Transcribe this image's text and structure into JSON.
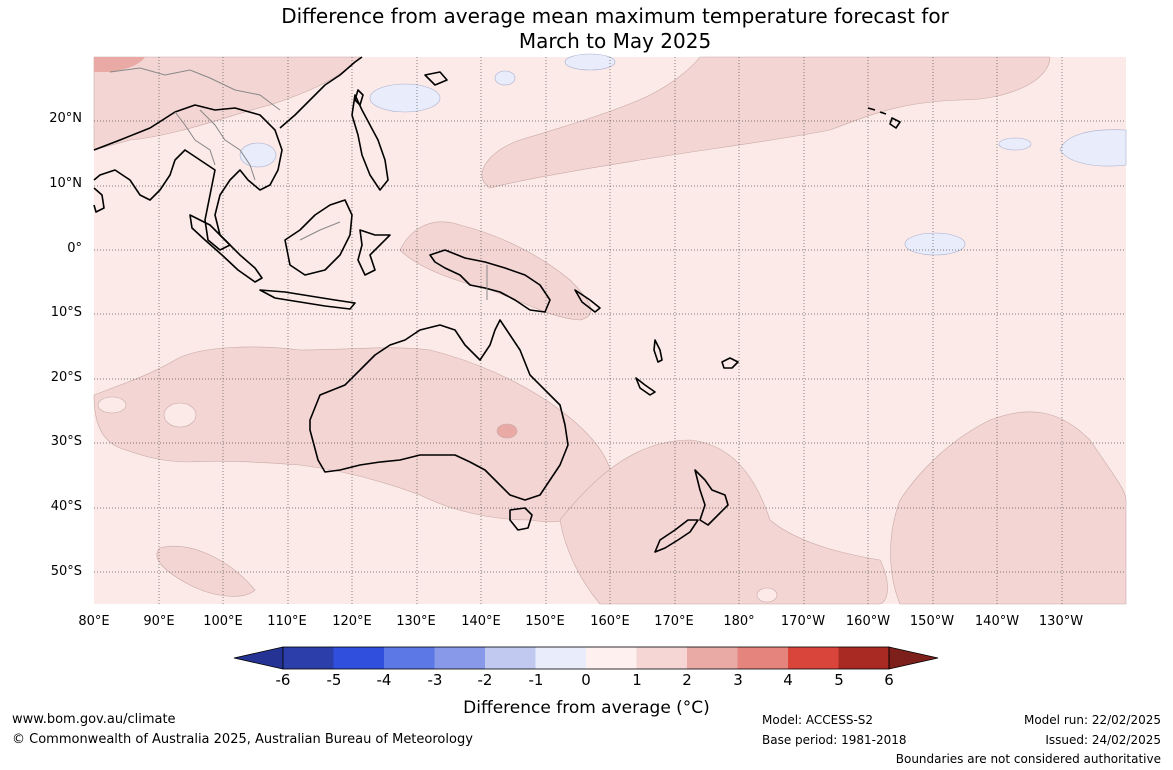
{
  "title": {
    "line1": "Difference from average mean maximum temperature forecast for",
    "line2": "March to May 2025"
  },
  "map": {
    "latitude_labels": [
      "20°N",
      "10°N",
      "0°",
      "10°S",
      "20°S",
      "30°S",
      "40°S",
      "50°S"
    ],
    "longitude_labels": [
      "80°E",
      "90°E",
      "100°E",
      "110°E",
      "120°E",
      "130°E",
      "140°E",
      "150°E",
      "160°E",
      "170°E",
      "180°",
      "170°W",
      "160°W",
      "150°W",
      "140°W",
      "130°W"
    ],
    "ocean_color": "#fbeae8",
    "warm_color": "#f3d5d3",
    "warmer_color": "#e9aaa6",
    "cool_color": "#e8ecfb",
    "land_outline_color": "#000000"
  },
  "colorbar": {
    "colors": [
      "#253494",
      "#2c3eaa",
      "#2f4fdc",
      "#5c78e6",
      "#8799e8",
      "#c1c9f1",
      "#e9ecfb",
      "#fdf0ee",
      "#f5d6d4",
      "#e9aaa6",
      "#e4847c",
      "#d9453b",
      "#a82a22",
      "#7d1f1a"
    ],
    "ticks": [
      "-6",
      "-5",
      "-4",
      "-3",
      "-2",
      "-1",
      "0",
      "1",
      "2",
      "3",
      "4",
      "5",
      "6"
    ],
    "label": "Difference from average (°C)"
  },
  "footer": {
    "website": "www.bom.gov.au/climate",
    "copyright": "© Commonwealth of Australia 2025, Australian Bureau of Meteorology",
    "model": "Model: ACCESS-S2",
    "base_period": "Base period: 1981-2018",
    "model_run": "Model run: 22/02/2025",
    "issued": "Issued: 24/02/2025",
    "disclaimer": "Boundaries are not considered authoritative"
  }
}
